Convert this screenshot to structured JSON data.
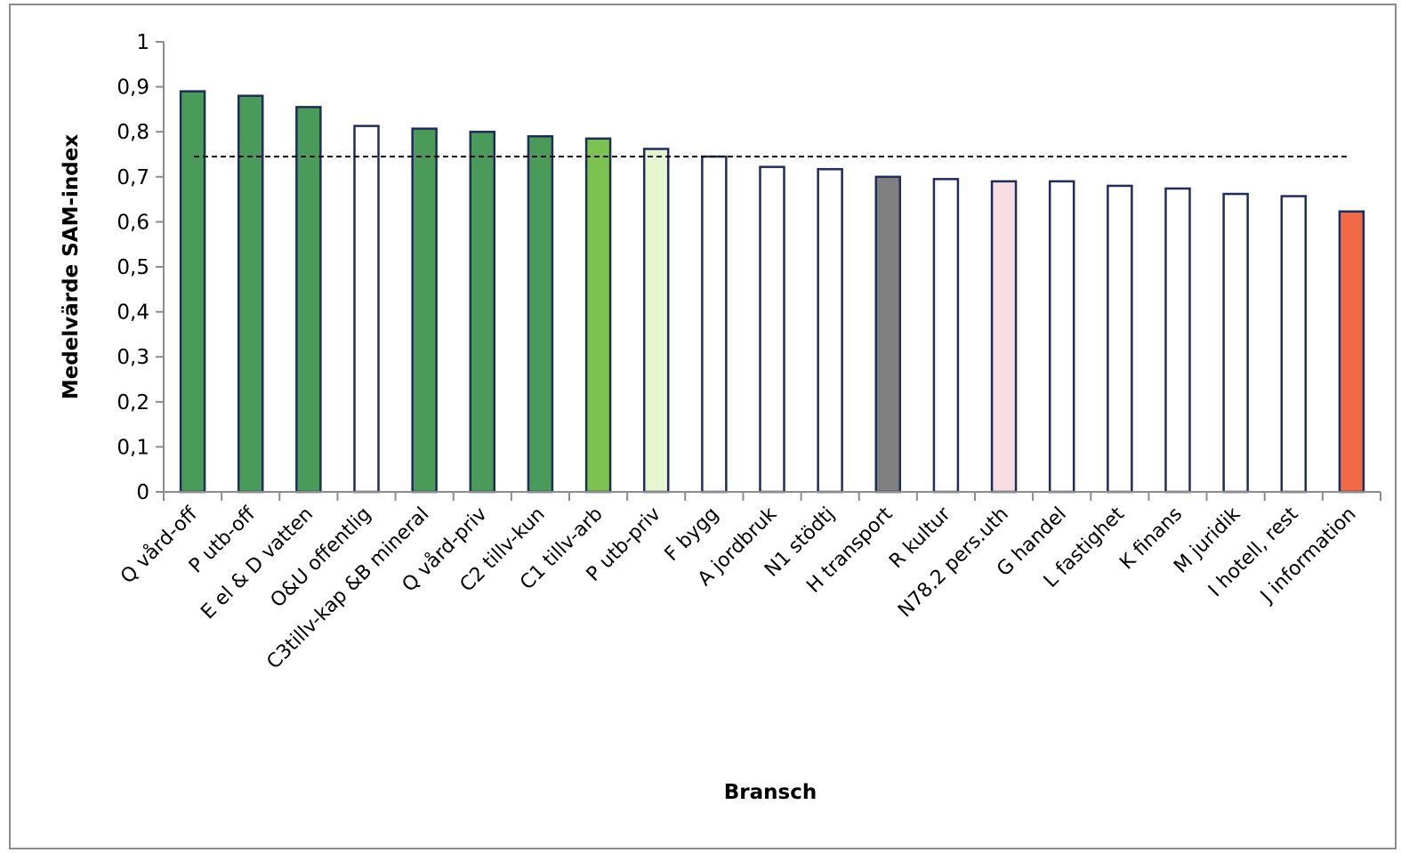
{
  "chart_data": {
    "type": "bar",
    "xlabel": "Bransch",
    "ylabel": "Medelvärde SAM-index",
    "ylim": [
      0,
      1
    ],
    "yticks": [
      "0",
      "0,1",
      "0,2",
      "0,3",
      "0,4",
      "0,5",
      "0,6",
      "0,7",
      "0,8",
      "0,9",
      "1"
    ],
    "reference_line": 0.745,
    "grid": false,
    "legend": "none",
    "bar_outline_color": "#1f2d5a",
    "reference_line_color": "#000000",
    "categories": [
      "Q vård-off",
      "P utb-off",
      "E el & D vatten",
      "O&U offentlig",
      "C3tillv-kap &B mineral",
      "Q vård-priv",
      "C2 tillv-kun",
      "C1 tillv-arb",
      "P utb-priv",
      "F bygg",
      "A jordbruk",
      "N1 stödtj",
      "H transport",
      "R kultur",
      "N78.2 pers.uth",
      "G handel",
      "L fastighet",
      "K finans",
      "M juridik",
      "I hotell, rest",
      "J information"
    ],
    "values": [
      0.89,
      0.88,
      0.855,
      0.813,
      0.807,
      0.8,
      0.79,
      0.785,
      0.762,
      0.745,
      0.722,
      0.717,
      0.7,
      0.695,
      0.69,
      0.69,
      0.68,
      0.674,
      0.662,
      0.657,
      0.623
    ],
    "colors": [
      "#4a9a5a",
      "#4a9a5a",
      "#4a9a5a",
      "#ffffff",
      "#4a9a5a",
      "#4a9a5a",
      "#4a9a5a",
      "#7cc24f",
      "#e6f7d0",
      "#ffffff",
      "#ffffff",
      "#ffffff",
      "#808080",
      "#ffffff",
      "#f7dde3",
      "#ffffff",
      "#ffffff",
      "#ffffff",
      "#ffffff",
      "#ffffff",
      "#f26a45"
    ]
  }
}
